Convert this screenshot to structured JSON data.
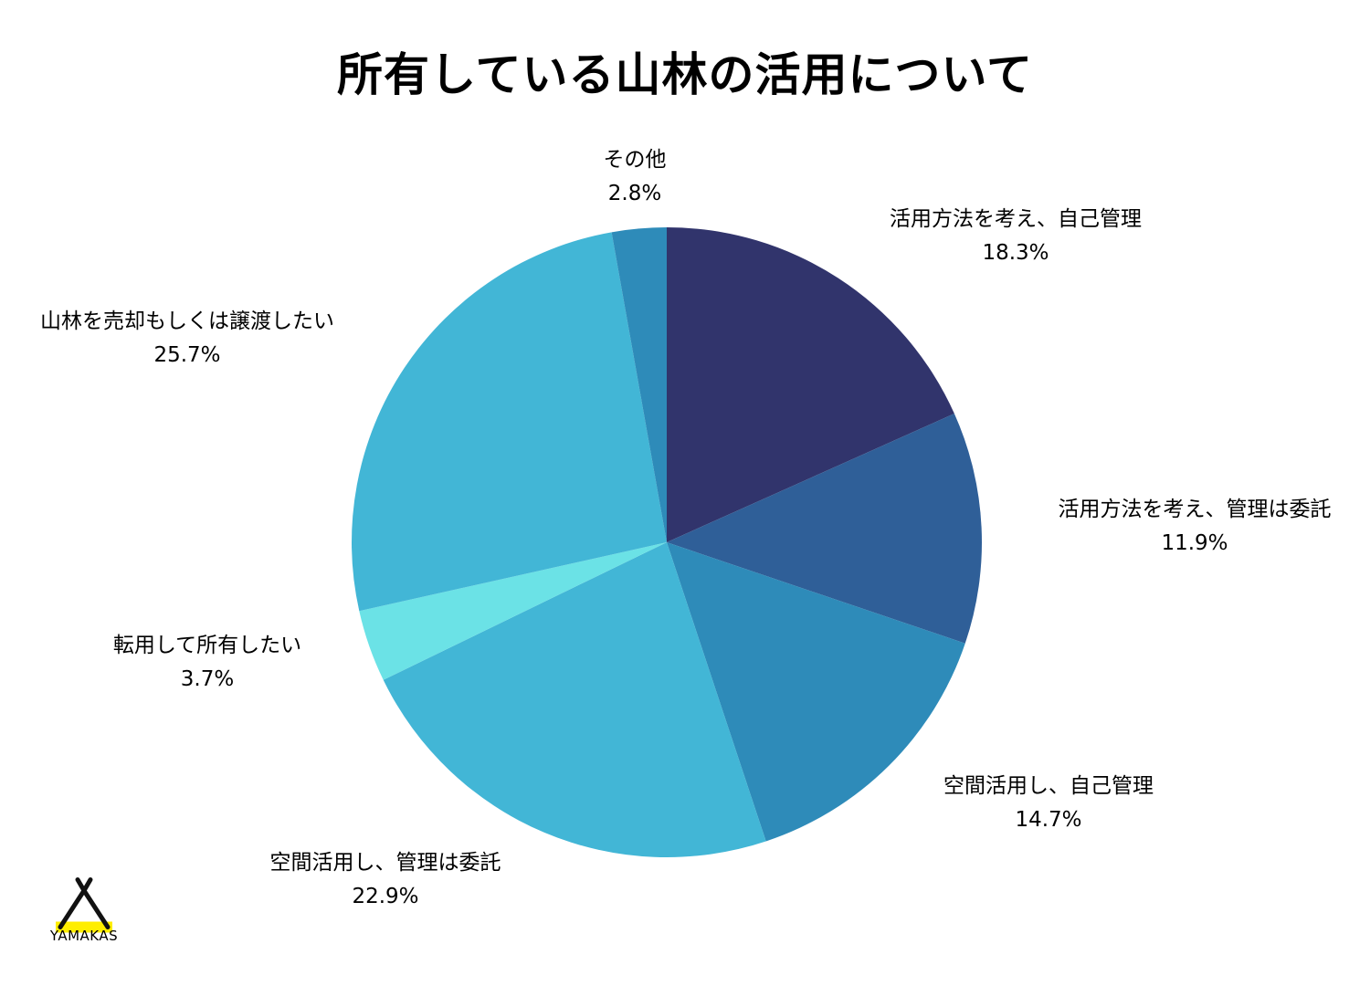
{
  "chart_data": {
    "type": "pie",
    "title": "所有している山林の活用について",
    "start_angle_deg": 0,
    "direction": "clockwise",
    "slices": [
      {
        "label": "活用方法を考え、自己管理",
        "value": 18.3,
        "value_text": "18.3%",
        "color": "#31346c"
      },
      {
        "label": "活用方法を考え、管理は委託",
        "value": 11.9,
        "value_text": "11.9%",
        "color": "#2f5f98"
      },
      {
        "label": "空間活用し、自己管理",
        "value": 14.7,
        "value_text": "14.7%",
        "color": "#2e8bb9"
      },
      {
        "label": "空間活用し、管理は委託",
        "value": 22.9,
        "value_text": "22.9%",
        "color": "#42b6d6"
      },
      {
        "label": "転用して所有したい",
        "value": 3.7,
        "value_text": "3.7%",
        "color": "#6be2e6"
      },
      {
        "label": "山林を売却もしくは譲渡したい",
        "value": 25.7,
        "value_text": "25.7%",
        "color": "#42b6d6"
      },
      {
        "label": "その他",
        "value": 2.8,
        "value_text": "2.8%",
        "color": "#2e8bb9"
      }
    ]
  },
  "logo": {
    "text": "YAMAKAS",
    "accent_color": "#ffee00"
  }
}
